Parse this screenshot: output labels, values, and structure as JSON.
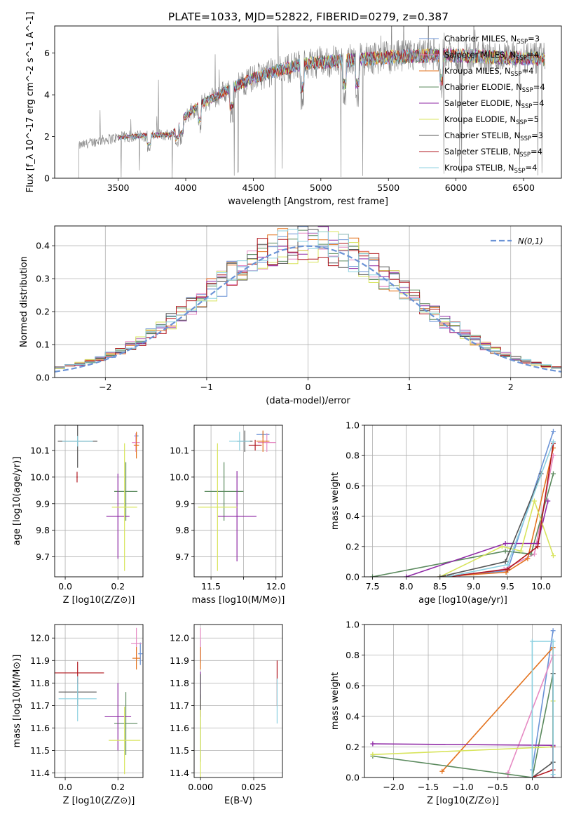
{
  "figure_title": "PLATE=1033, MJD=52822, FIBERID=0279, z=0.387",
  "series_colors": [
    "#6b93d6",
    "#e68ac3",
    "#e3731f",
    "#5b8a5e",
    "#8f2aa6",
    "#d8e45c",
    "#555555",
    "#b0171f",
    "#8cd0e0"
  ],
  "legend_models": [
    "Chabrier MILES, N_SSP=3",
    "Salpeter MILES, N_SSP=4",
    "Kroupa MILES, N_SSP=4",
    "Chabrier ELODIE, N_SSP=4",
    "Salpeter ELODIE, N_SSP=4",
    "Kroupa ELODIE, N_SSP=5",
    "Chabrier STELIB, N_SSP=3",
    "Salpeter STELIB, N_SSP=4",
    "Kroupa STELIB, N_SSP=4"
  ],
  "chart_data": [
    {
      "id": "spectrum",
      "type": "line",
      "xlabel": "wavelength [Angstrom, rest frame]",
      "ylabel": "Flux [f_λ 10^-17 erg cm^-2 s^-1 A^-1]",
      "xlim": [
        3030,
        6780
      ],
      "ylim": [
        0,
        7.3
      ],
      "xticks": [
        3500,
        4000,
        4500,
        5000,
        5500,
        6000,
        6500
      ],
      "yticks": [
        0,
        2,
        4,
        6
      ],
      "grid": false,
      "legend_placement": "upper-right",
      "data_series": {
        "name": "data",
        "color": "#808080"
      },
      "continuum_x": [
        3210,
        3350,
        3500,
        3700,
        3900,
        4000,
        4100,
        4300,
        4500,
        4700,
        4900,
        5100,
        5300,
        5500,
        5700,
        5900,
        6100,
        6300,
        6500,
        6660
      ],
      "continuum_y": [
        1.55,
        1.8,
        1.95,
        2.05,
        2.1,
        3.0,
        3.5,
        4.2,
        4.8,
        5.2,
        5.5,
        5.6,
        5.7,
        5.8,
        5.85,
        5.9,
        5.85,
        5.8,
        5.75,
        5.7
      ],
      "model_x_range": [
        3500,
        6660
      ]
    },
    {
      "id": "residuals",
      "type": "histogram",
      "xlabel": "(data-model)/error",
      "ylabel": "Normed distribution",
      "xlim": [
        -2.5,
        2.5
      ],
      "ylim": [
        0,
        0.46
      ],
      "xticks": [
        -2,
        -1,
        0,
        1,
        2
      ],
      "yticks": [
        0.0,
        0.1,
        0.2,
        0.3,
        0.4
      ],
      "grid": true,
      "bin_width": 0.1,
      "reference_curve": {
        "label": "N(0,1)",
        "color": "#6b93d6",
        "mean": 0,
        "sigma": 1
      },
      "legend_placement": "upper-right"
    },
    {
      "id": "age-vs-Z",
      "type": "errorbar",
      "xlabel": "Z [log10(Z/Z⊙)]",
      "ylabel": "age [log10(age/yr)]",
      "xlim": [
        -0.04,
        0.295
      ],
      "ylim": [
        9.625,
        10.195
      ],
      "xticks": [
        0.0,
        0.2
      ],
      "yticks": [
        9.7,
        9.8,
        9.9,
        10.0,
        10.1
      ],
      "grid": true,
      "points": [
        {
          "x": 0.27,
          "xerr": 0.008,
          "y": 10.155,
          "yerr": 0.012
        },
        {
          "x": 0.268,
          "xerr": 0.015,
          "y": 10.13,
          "yerr": 0.035
        },
        {
          "x": 0.27,
          "xerr": 0.01,
          "y": 10.12,
          "yerr": 0.05
        },
        {
          "x": 0.23,
          "xerr": 0.044,
          "y": 9.946,
          "yerr": 0.11
        },
        {
          "x": 0.2,
          "xerr": 0.044,
          "y": 9.853,
          "yerr": 0.16
        },
        {
          "x": 0.225,
          "xerr": 0.048,
          "y": 9.887,
          "yerr": 0.24
        },
        {
          "x": 0.047,
          "xerr": 0.075,
          "y": 10.135,
          "yerr": 0.1
        },
        {
          "x": 0.045,
          "xerr": 0.002,
          "y": 10.0,
          "yerr": 0.02
        },
        {
          "x": 0.047,
          "xerr": 0.058,
          "y": 10.135,
          "yerr": 0.02
        }
      ]
    },
    {
      "id": "age-vs-mass",
      "type": "errorbar",
      "xlabel": "mass [log10(M/M⊙)]",
      "ylabel": "",
      "xlim": [
        11.37,
        12.05
      ],
      "ylim": [
        9.625,
        10.195
      ],
      "xticks": [
        11.5,
        11.75,
        12.0
      ],
      "xticklabels": [
        "11.5",
        "",
        "12.0"
      ],
      "yticks": [
        9.7,
        9.8,
        9.9,
        10.0,
        10.1
      ],
      "grid": true,
      "points": [
        {
          "x": 11.9,
          "xerr": 0.05,
          "y": 10.16,
          "yerr": 0.012
        },
        {
          "x": 11.93,
          "xerr": 0.07,
          "y": 10.13,
          "yerr": 0.035
        },
        {
          "x": 11.9,
          "xerr": 0.05,
          "y": 10.135,
          "yerr": 0.04
        },
        {
          "x": 11.6,
          "xerr": 0.15,
          "y": 9.946,
          "yerr": 0.11
        },
        {
          "x": 11.7,
          "xerr": 0.15,
          "y": 9.853,
          "yerr": 0.17
        },
        {
          "x": 11.55,
          "xerr": 0.15,
          "y": 9.887,
          "yerr": 0.24
        },
        {
          "x": 11.76,
          "xerr": 0.06,
          "y": 10.135,
          "yerr": 0.04
        },
        {
          "x": 11.84,
          "xerr": 0.05,
          "y": 10.12,
          "yerr": 0.02
        },
        {
          "x": 11.72,
          "xerr": 0.08,
          "y": 10.135,
          "yerr": 0.035
        }
      ]
    },
    {
      "id": "weight-vs-age",
      "type": "line",
      "xlabel": "age [log10(age/yr)]",
      "ylabel": "mass weight",
      "xlim": [
        7.38,
        10.3
      ],
      "ylim": [
        0,
        1.0
      ],
      "xticks": [
        7.5,
        8.0,
        8.5,
        9.0,
        9.5,
        10.0
      ],
      "yticks": [
        0.0,
        0.2,
        0.4,
        0.6,
        0.8,
        1.0
      ],
      "grid": true,
      "series": [
        {
          "x": [
            8.5,
            9.5,
            10.18
          ],
          "y": [
            0.0,
            0.04,
            0.96
          ]
        },
        {
          "x": [
            8.7,
            9.45,
            9.9,
            10.18
          ],
          "y": [
            0.0,
            0.05,
            0.15,
            0.8
          ]
        },
        {
          "x": [
            8.5,
            9.48,
            9.8,
            10.18
          ],
          "y": [
            0.0,
            0.03,
            0.12,
            0.85
          ]
        },
        {
          "x": [
            7.5,
            9.47,
            9.85,
            10.18
          ],
          "y": [
            0.0,
            0.17,
            0.15,
            0.68
          ]
        },
        {
          "x": [
            8.0,
            9.47,
            9.95,
            10.1
          ],
          "y": [
            0.0,
            0.22,
            0.22,
            0.5
          ]
        },
        {
          "x": [
            8.5,
            9.42,
            9.7,
            9.9,
            10.18
          ],
          "y": [
            0.0,
            0.2,
            0.17,
            0.5,
            0.14
          ]
        },
        {
          "x": [
            8.5,
            9.47,
            10.0
          ],
          "y": [
            0.0,
            0.1,
            0.68
          ]
        },
        {
          "x": [
            8.6,
            9.5,
            9.95,
            10.18
          ],
          "y": [
            0.0,
            0.05,
            0.2,
            0.88
          ]
        },
        {
          "x": [
            8.6,
            9.5,
            10.18
          ],
          "y": [
            0.0,
            0.08,
            0.89
          ]
        }
      ]
    },
    {
      "id": "mass-vs-Z",
      "type": "errorbar",
      "xlabel": "Z [log10(Z/Z⊙)]",
      "ylabel": "mass [log10(M/M⊙)]",
      "xlim": [
        -0.04,
        0.295
      ],
      "ylim": [
        11.38,
        12.06
      ],
      "xticks": [
        0.0,
        0.2
      ],
      "yticks": [
        11.4,
        11.5,
        11.6,
        11.7,
        11.8,
        11.9,
        12.0
      ],
      "grid": true,
      "points": [
        {
          "x": 0.285,
          "xerr": 0.008,
          "y": 11.93,
          "yerr": 0.05
        },
        {
          "x": 0.27,
          "xerr": 0.02,
          "y": 11.975,
          "yerr": 0.07
        },
        {
          "x": 0.27,
          "xerr": 0.015,
          "y": 11.91,
          "yerr": 0.05
        },
        {
          "x": 0.23,
          "xerr": 0.044,
          "y": 11.62,
          "yerr": 0.14
        },
        {
          "x": 0.2,
          "xerr": 0.05,
          "y": 11.65,
          "yerr": 0.15
        },
        {
          "x": 0.225,
          "xerr": 0.06,
          "y": 11.545,
          "yerr": 0.15
        },
        {
          "x": 0.047,
          "xerr": 0.072,
          "y": 11.76,
          "yerr": 0.06
        },
        {
          "x": 0.047,
          "xerr": 0.1,
          "y": 11.845,
          "yerr": 0.05
        },
        {
          "x": 0.047,
          "xerr": 0.072,
          "y": 11.73,
          "yerr": 0.1
        }
      ]
    },
    {
      "id": "mass-vs-ebv",
      "type": "errorbar",
      "xlabel": "E(B-V)",
      "ylabel": "",
      "xlim": [
        -0.003,
        0.0385
      ],
      "ylim": [
        11.38,
        12.06
      ],
      "xticks": [
        0.0,
        0.025
      ],
      "xticklabels": [
        "0.000",
        "0.025"
      ],
      "yticks": [
        11.4,
        11.5,
        11.6,
        11.7,
        11.8,
        11.9,
        12.0
      ],
      "grid": true,
      "points": [
        {
          "x": 0.0,
          "xerr": 0,
          "y": 11.94,
          "yerr": 0.05
        },
        {
          "x": 0.0,
          "xerr": 0,
          "y": 11.975,
          "yerr": 0.07
        },
        {
          "x": 0.0,
          "xerr": 0,
          "y": 11.91,
          "yerr": 0.05
        },
        {
          "x": 0.0,
          "xerr": 0,
          "y": 11.6,
          "yerr": 0.15
        },
        {
          "x": 0.0,
          "xerr": 0,
          "y": 11.75,
          "yerr": 0.1
        },
        {
          "x": 0.0,
          "xerr": 0,
          "y": 11.55,
          "yerr": 0.18
        },
        {
          "x": 0.0,
          "xerr": 0,
          "y": 11.76,
          "yerr": 0.08
        },
        {
          "x": 0.036,
          "xerr": 0,
          "y": 11.8,
          "yerr": 0.1
        },
        {
          "x": 0.036,
          "xerr": 0,
          "y": 11.72,
          "yerr": 0.1
        }
      ]
    },
    {
      "id": "weight-vs-Z",
      "type": "line",
      "xlabel": "Z [log10(Z/Z⊙)]",
      "ylabel": "mass weight",
      "xlim": [
        -2.42,
        0.42
      ],
      "ylim": [
        0,
        1.0
      ],
      "xticks": [
        -2.0,
        -1.5,
        -1.0,
        -0.5,
        0.0
      ],
      "yticks": [
        0.0,
        0.2,
        0.4,
        0.6,
        0.8,
        1.0
      ],
      "grid": true,
      "series": [
        {
          "x": [
            0.0,
            0.0,
            0.3
          ],
          "y": [
            0.0,
            0.05,
            0.96
          ]
        },
        {
          "x": [
            -0.35,
            -0.35,
            0.3,
            0.3
          ],
          "y": [
            0.0,
            0.03,
            0.8,
            0.0
          ]
        },
        {
          "x": [
            -1.3,
            0.3,
            0.3
          ],
          "y": [
            0.04,
            0.85,
            0.0
          ]
        },
        {
          "x": [
            -2.3,
            0.0,
            0.3,
            0.3
          ],
          "y": [
            0.14,
            0.0,
            0.68,
            0.0
          ]
        },
        {
          "x": [
            -2.3,
            0.3,
            0.3
          ],
          "y": [
            0.22,
            0.21,
            0.0
          ]
        },
        {
          "x": [
            -2.3,
            0.3,
            0.3
          ],
          "y": [
            0.15,
            0.2,
            0.5
          ]
        },
        {
          "x": [
            0.0,
            0.3,
            0.3
          ],
          "y": [
            0.0,
            0.1,
            0.68
          ]
        },
        {
          "x": [
            0.0,
            0.3,
            0.3
          ],
          "y": [
            0.0,
            0.05,
            0.2
          ]
        },
        {
          "x": [
            0.0,
            0.0,
            0.3,
            0.3
          ],
          "y": [
            0.0,
            0.89,
            0.89,
            0.02
          ]
        }
      ]
    }
  ]
}
